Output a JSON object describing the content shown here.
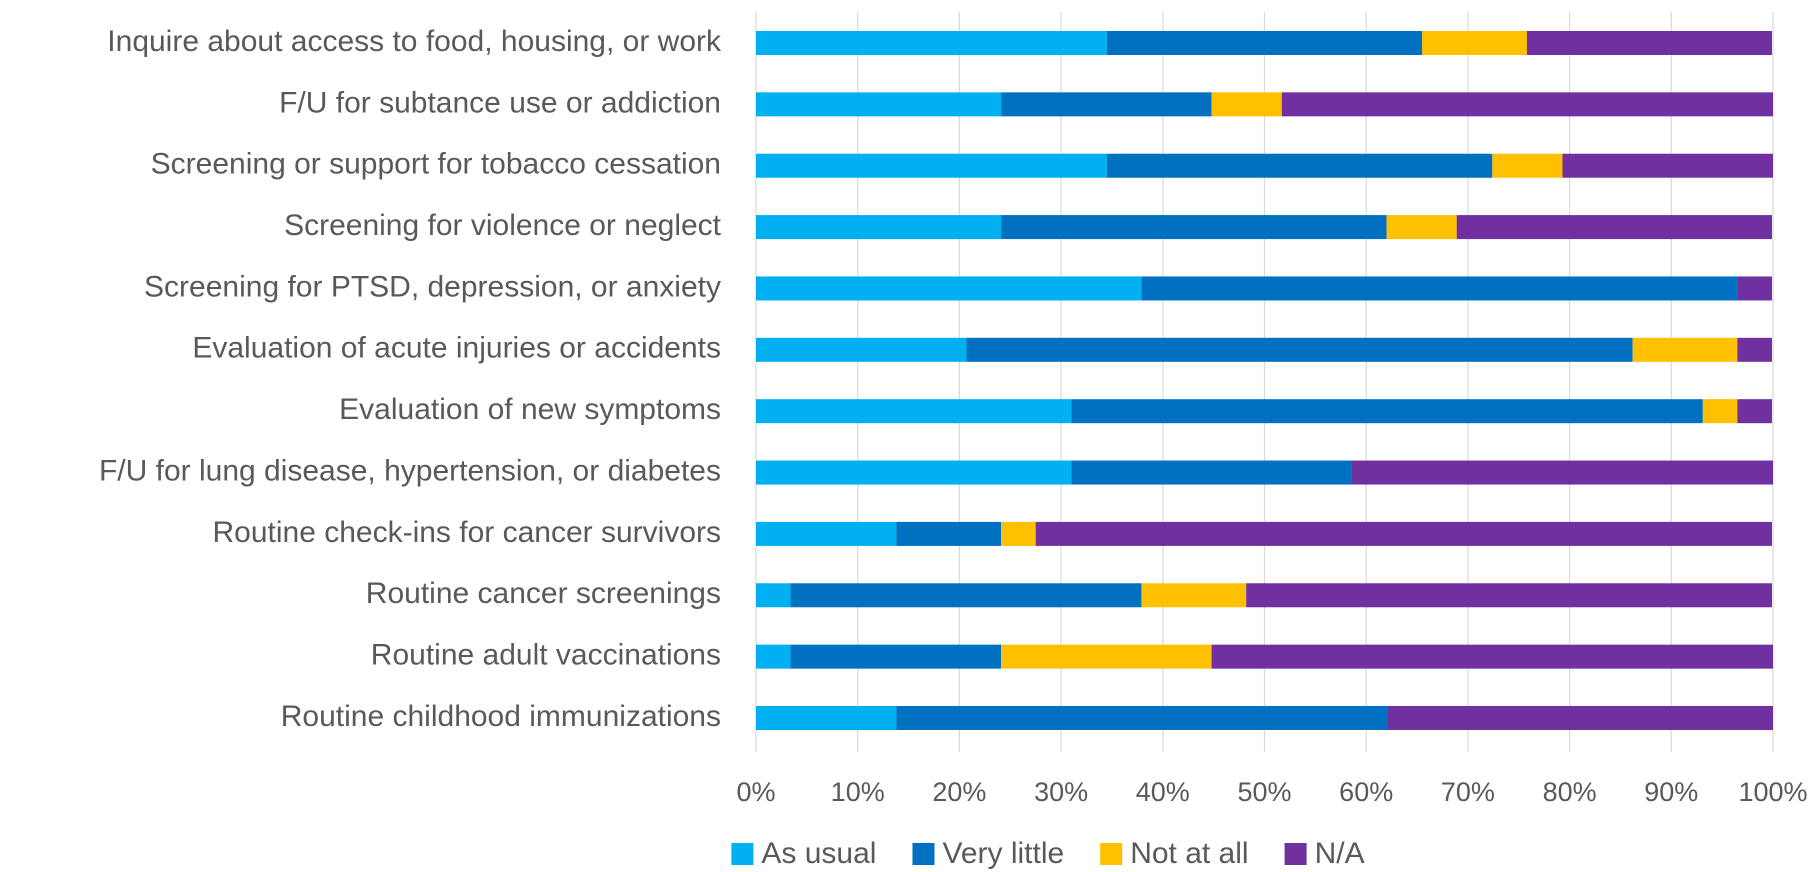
{
  "chart_data": {
    "type": "stacked-bar-horizontal",
    "categories": [
      "Inquire about access to food, housing, or work",
      "F/U for subtance use or addiction",
      "Screening or support for tobacco cessation",
      "Screening for violence or neglect",
      "Screening for PTSD, depression, or anxiety",
      "Evaluation of acute injuries or accidents",
      "Evaluation of new symptoms",
      "F/U for lung disease, hypertension, or diabetes",
      "Routine check-ins for cancer survivors",
      "Routine cancer screenings",
      "Routine adult vaccinations",
      "Routine childhood immunizations"
    ],
    "series": [
      {
        "name": "As usual",
        "color": "#00b0f0",
        "values": [
          34.5,
          24.1,
          34.5,
          24.1,
          37.9,
          20.7,
          31.0,
          31.0,
          13.8,
          3.4,
          3.4,
          13.8
        ]
      },
      {
        "name": "Very little",
        "color": "#0070c0",
        "values": [
          31.0,
          20.7,
          37.9,
          37.9,
          58.6,
          65.5,
          62.1,
          27.6,
          10.3,
          34.5,
          20.7,
          48.3
        ]
      },
      {
        "name": "Not at all",
        "color": "#ffc000",
        "values": [
          10.3,
          6.9,
          6.9,
          6.9,
          0,
          10.3,
          3.4,
          0,
          3.4,
          10.3,
          20.7,
          0
        ]
      },
      {
        "name": "N/A",
        "color": "#7030a0",
        "values": [
          24.1,
          48.3,
          20.7,
          31.0,
          3.4,
          3.4,
          3.4,
          41.4,
          72.4,
          51.7,
          55.2,
          37.9
        ]
      }
    ],
    "xlim": [
      0,
      100
    ],
    "xticks": [
      {
        "value": 0,
        "label": "0%"
      },
      {
        "value": 10,
        "label": "10%"
      },
      {
        "value": 20,
        "label": "20%"
      },
      {
        "value": 30,
        "label": "30%"
      },
      {
        "value": 40,
        "label": "40%"
      },
      {
        "value": 50,
        "label": "50%"
      },
      {
        "value": 60,
        "label": "60%"
      },
      {
        "value": 70,
        "label": "70%"
      },
      {
        "value": 80,
        "label": "80%"
      },
      {
        "value": 90,
        "label": "90%"
      },
      {
        "value": 100,
        "label": "100%"
      }
    ],
    "grid": true,
    "legend": "bottom"
  }
}
